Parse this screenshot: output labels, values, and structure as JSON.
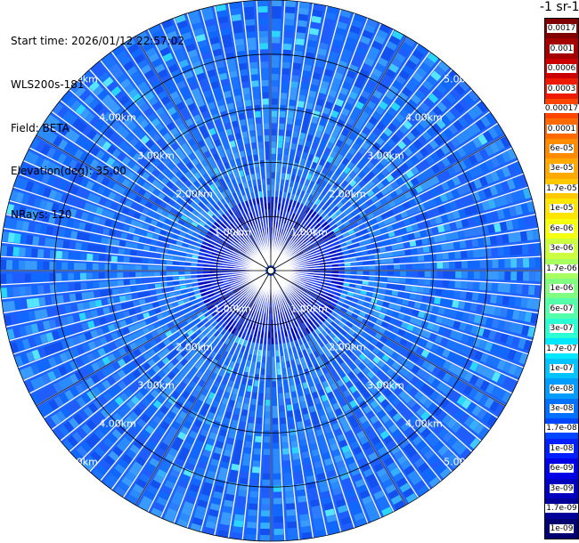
{
  "info": {
    "start_time": "Start time: 2026/01/12 22:57:02",
    "instrument": "WLS200s-181",
    "field": "Field: BETA",
    "elevation": "Elevation(deg): 35.00",
    "nrays": "NRays: 120"
  },
  "colorbar": {
    "title": "-1 sr-1",
    "ticks": [
      "0.0017",
      "0.001",
      "0.0006",
      "0.0003",
      "0.00017",
      "0.0001",
      "6e-05",
      "3e-05",
      "1.7e-05",
      "1e-05",
      "6e-06",
      "3e-06",
      "1.7e-06",
      "1e-06",
      "6e-07",
      "3e-07",
      "1.7e-07",
      "1e-07",
      "6e-08",
      "3e-08",
      "1.7e-08",
      "1e-08",
      "6e-09",
      "3e-09",
      "1.7e-09",
      "1e-09"
    ],
    "colors": [
      "#800000",
      "#a50000",
      "#cc0000",
      "#ee1a00",
      "#ff4500",
      "#ff6a00",
      "#ff8c00",
      "#ffaa00",
      "#ffc800",
      "#ffe600",
      "#f5ff10",
      "#ccff40",
      "#a8ff60",
      "#80ff80",
      "#55ffaa",
      "#2bffd4",
      "#00e8ff",
      "#00c3ff",
      "#009cff",
      "#0070ff",
      "#0046ff",
      "#0020ff",
      "#0000e6",
      "#0000c0",
      "#000099",
      "#000070"
    ]
  },
  "chart_data": {
    "type": "heatmap",
    "projection": "ppi-polar",
    "range_unit": "km",
    "max_range_km": 5.0,
    "nrays": 120,
    "elevation_deg": 35.0,
    "field": "BETA",
    "range_rings_km": [
      1,
      2,
      3,
      4,
      5
    ],
    "range_ring_labels": [
      "1.00km",
      "2.00km",
      "3.00km",
      "4.00km",
      "5.00km"
    ],
    "colorscale": "log",
    "dominant_value_range": [
      "6e-08",
      "3e-07"
    ],
    "grid": true
  }
}
